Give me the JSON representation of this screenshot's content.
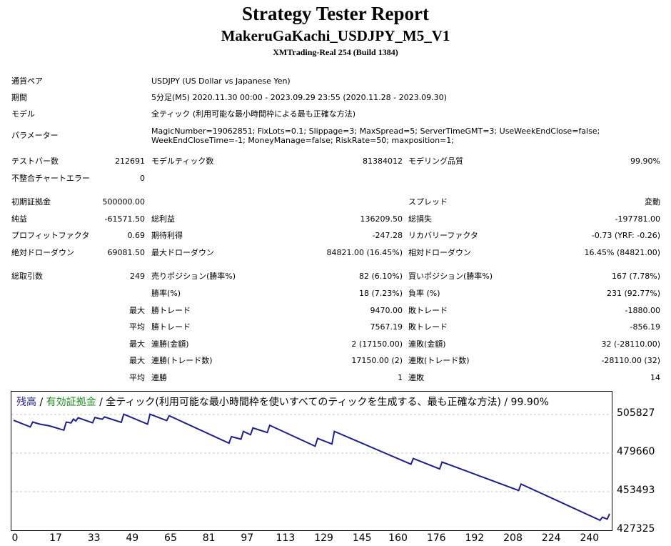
{
  "header": {
    "title": "Strategy Tester Report",
    "ea_name": "MakeruGaKachi_USDJPY_M5_V1",
    "server": "XMTrading-Real 254 (Build 1384)"
  },
  "info": {
    "symbol_label": "通貨ペア",
    "symbol_value": "USDJPY (US Dollar vs Japanese Yen)",
    "period_label": "期間",
    "period_value": "5分足(M5) 2020.11.30 00:00 - 2023.09.29 23:55 (2020.11.28 - 2023.09.30)",
    "model_label": "モデル",
    "model_value": "全ティック (利用可能な最小時間枠による最も正確な方法)",
    "params_label": "パラメーター",
    "params_line1": "MagicNumber=19062851; FixLots=0.1; Slippage=3; MaxSpread=5; ServerTimeGMT=3; UseWeekEndClose=false;",
    "params_line2": "WeekEndCloseTime=-1; MoneyManage=false; RiskRate=50; maxposition=1;"
  },
  "stats": {
    "bars_label": "テストバー数",
    "bars_value": "212691",
    "ticks_label": "モデルティック数",
    "ticks_value": "81384012",
    "quality_label": "モデリング品質",
    "quality_value": "99.90%",
    "mismatch_label": "不整合チャートエラー",
    "mismatch_value": "0",
    "deposit_label": "初期証拠金",
    "deposit_value": "500000.00",
    "spread_label": "スプレッド",
    "spread_value": "変動",
    "net_label": "純益",
    "net_value": "-61571.50",
    "gross_profit_label": "総利益",
    "gross_profit_value": "136209.50",
    "gross_loss_label": "総損失",
    "gross_loss_value": "-197781.00",
    "pf_label": "プロフィットファクタ",
    "pf_value": "0.69",
    "payoff_label": "期待利得",
    "payoff_value": "-247.28",
    "recovery_label": "リカバリーファクタ",
    "recovery_value": "-0.73 (YRF: -0.26)",
    "abs_dd_label": "絶対ドローダウン",
    "abs_dd_value": "69081.50",
    "max_dd_label": "最大ドローダウン",
    "max_dd_value": "84821.00 (16.45%)",
    "rel_dd_label": "相対ドローダウン",
    "rel_dd_value": "16.45% (84821.00)",
    "total_label": "総取引数",
    "total_value": "249",
    "short_label": "売りポジション(勝率%)",
    "short_value": "82 (6.10%)",
    "long_label": "買いポジション(勝率%)",
    "long_value": "167 (7.78%)",
    "win_rate_label": "勝率(%)",
    "win_rate_value": "18 (7.23%)",
    "loss_rate_label": "負率 (%)",
    "loss_rate_value": "231 (92.77%)",
    "max_word": "最大",
    "avg_word": "平均",
    "largest_win_label": "勝トレード",
    "largest_win_value": "9470.00",
    "largest_loss_label": "敗トレード",
    "largest_loss_value": "-1880.00",
    "avg_win_label": "勝トレード",
    "avg_win_value": "7567.19",
    "avg_loss_label": "敗トレード",
    "avg_loss_value": "-856.19",
    "cons_win_amt_label": "連勝(金額)",
    "cons_win_amt_value": "2 (17150.00)",
    "cons_loss_amt_label": "連敗(金額)",
    "cons_loss_amt_value": "32 (-28110.00)",
    "cons_win_cnt_label": "連勝(トレード数)",
    "cons_win_cnt_value": "17150.00 (2)",
    "cons_loss_cnt_label": "連敗(トレード数)",
    "cons_loss_cnt_value": "-28110.00 (32)",
    "avg_cons_win_label": "連勝",
    "avg_cons_win_value": "1",
    "avg_cons_loss_label": "連敗",
    "avg_cons_loss_value": "14"
  },
  "chart_title": {
    "balance": "残高",
    "sep": " / ",
    "equity": "有効証拠金",
    "rest": " / 全ティック(利用可能な最小時間枠を使いすべてのティックを生成する、最も正確な方法) / 99.90%"
  },
  "chart_data": {
    "type": "line",
    "series": [
      {
        "name": "残高",
        "x": [
          0,
          7,
          8,
          11,
          15,
          21,
          22,
          24,
          25,
          26,
          27,
          33,
          34,
          37,
          38,
          45,
          46,
          56,
          57,
          64,
          65,
          90,
          91,
          95,
          96,
          99,
          100,
          106,
          107,
          126,
          127,
          133,
          134,
          166,
          167,
          178,
          179,
          211,
          212,
          245,
          246,
          248,
          249
        ],
        "values": [
          501900,
          497400,
          500700,
          499300,
          498100,
          495200,
          500700,
          500100,
          502700,
          501400,
          503600,
          500200,
          503800,
          502600,
          504200,
          500500,
          506000,
          499300,
          506000,
          501700,
          505000,
          486400,
          490800,
          489100,
          494400,
          492100,
          496700,
          493600,
          498500,
          484300,
          489600,
          485800,
          494400,
          472100,
          476000,
          468900,
          473600,
          454300,
          458700,
          434100,
          436200,
          434900,
          438500
        ]
      }
    ],
    "x_ticks": [
      "0",
      "17",
      "33",
      "49",
      "65",
      "81",
      "97",
      "113",
      "129",
      "145",
      "160",
      "176",
      "192",
      "208",
      "224",
      "240"
    ],
    "y_ticks": [
      "505827",
      "479660",
      "453493",
      "427325"
    ],
    "ylim": [
      427325,
      505827
    ],
    "colors": {
      "balance": "#1e1e8c",
      "equity": "#228b22",
      "grid": "#c8c8c8"
    }
  }
}
